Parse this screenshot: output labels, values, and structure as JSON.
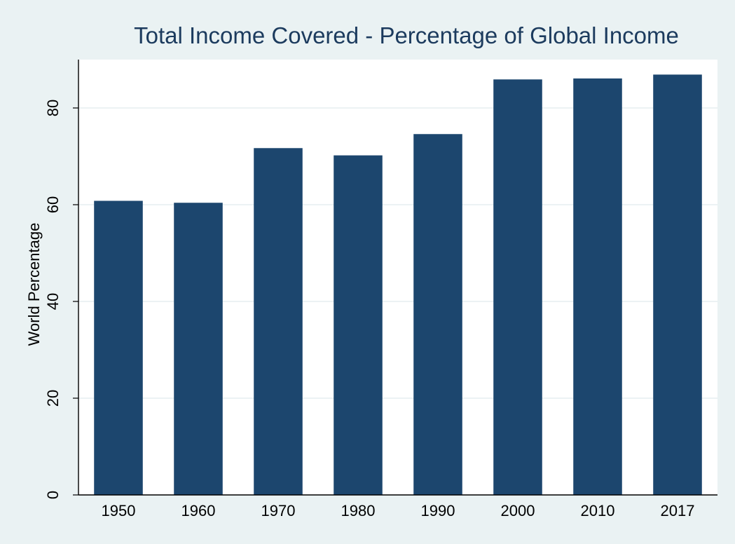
{
  "chart_data": {
    "type": "bar",
    "title": "Total Income Covered - Percentage of Global Income",
    "xlabel": "",
    "ylabel": "World Percentage",
    "categories": [
      "1950",
      "1960",
      "1970",
      "1980",
      "1990",
      "2000",
      "2010",
      "2017"
    ],
    "values": [
      60.8,
      60.4,
      71.7,
      70.2,
      74.6,
      85.9,
      86.1,
      86.9
    ],
    "ylim": [
      0,
      90
    ],
    "yticks": [
      0,
      20,
      40,
      60,
      80
    ],
    "grid": true,
    "legend": "none",
    "colors": {
      "bar": "#1c466e",
      "title": "#1c3b5e",
      "outer_background": "#eaf2f3",
      "plot_background": "#ffffff",
      "gridline": "#e6eef0",
      "axis": "#000000"
    }
  }
}
